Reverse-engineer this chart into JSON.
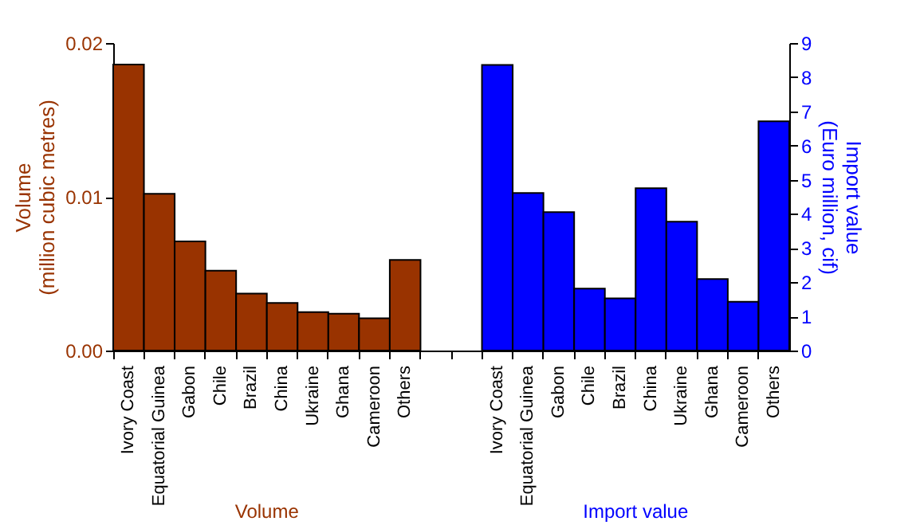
{
  "chart_data": {
    "type": "bar",
    "categories": [
      "Ivory Coast",
      "Equatorial Guinea",
      "Gabon",
      "Chile",
      "Brazil",
      "China",
      "Ukraine",
      "Ghana",
      "Cameroon",
      "Others",
      null,
      null,
      "Ivory Coast",
      "Equatorial Guinea",
      "Gabon",
      "Chile",
      "Brazil",
      "China",
      "Ukraine",
      "Ghana",
      "Cameroon",
      "Others"
    ],
    "ylabel": "Volume\n(million cubic metres)",
    "y2label": "Import value\n(Euro million, cif)",
    "series": [
      {
        "name": "Volume",
        "color": "#993300",
        "values": [
          0.0186,
          0.0102,
          0.0071,
          0.0052,
          0.0037,
          0.0031,
          0.0025,
          0.0024,
          0.0021,
          0.0059,
          null,
          null,
          null,
          null,
          null,
          null,
          null,
          null,
          null,
          null,
          null,
          null
        ]
      },
      {
        "name": "Import value",
        "color": "#0000ff",
        "axis": "y2",
        "values": [
          null,
          null,
          null,
          null,
          null,
          null,
          null,
          null,
          null,
          null,
          null,
          null,
          8.36,
          4.61,
          4.05,
          1.81,
          1.53,
          4.75,
          3.77,
          2.09,
          1.43,
          6.71
        ]
      }
    ],
    "ylim": [
      0,
      0.02
    ],
    "yticks": [
      {
        "value": 0,
        "label": "0.00"
      },
      {
        "value": 0.01,
        "label": "0.01"
      },
      {
        "value": 0.02,
        "label": "0.02"
      }
    ],
    "y2lim": [
      0,
      9
    ],
    "y2ticks": [
      0,
      1,
      2,
      3,
      4,
      5,
      6,
      7,
      8,
      9
    ],
    "grid": false
  }
}
